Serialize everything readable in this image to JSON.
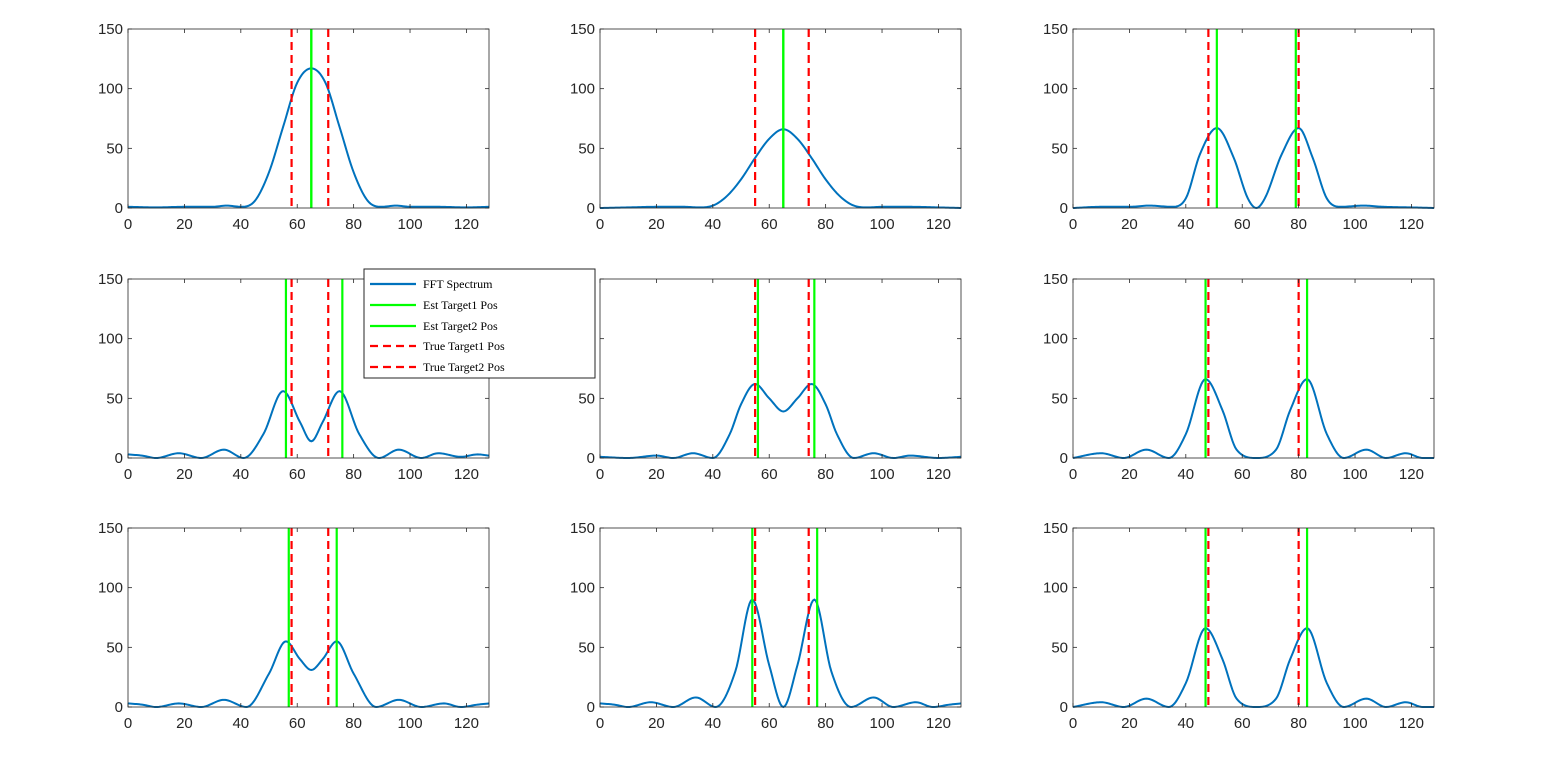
{
  "figure": {
    "legend": {
      "entries": [
        {
          "label": "FFT Spectrum",
          "color": "#0072BD",
          "style": "solid"
        },
        {
          "label": "Est Target1 Pos",
          "color": "#00FF00",
          "style": "solid"
        },
        {
          "label": "Est Target2 Pos",
          "color": "#00FF00",
          "style": "solid"
        },
        {
          "label": "True Target1 Pos",
          "color": "#FF0000",
          "style": "dashed"
        },
        {
          "label": "True Target2 Pos",
          "color": "#FF0000",
          "style": "dashed"
        }
      ]
    },
    "colors": {
      "spectrum": "#0072BD",
      "estimate": "#00FF00",
      "truth": "#FF0000",
      "axis": "#262626"
    }
  },
  "chart_data": [
    {
      "type": "line",
      "title": "",
      "xlabel": "",
      "ylabel": "",
      "xlim": [
        0,
        128
      ],
      "ylim": [
        0,
        150
      ],
      "xticks": [
        0,
        20,
        40,
        60,
        80,
        100,
        120
      ],
      "yticks": [
        0,
        50,
        100,
        150
      ],
      "spectrum": {
        "name": "FFT Spectrum",
        "x": [
          0,
          10,
          20,
          30,
          35,
          40,
          45,
          50,
          55,
          60,
          65,
          70,
          75,
          80,
          85,
          90,
          95,
          100,
          110,
          120,
          128
        ],
        "y": [
          1,
          0.5,
          1,
          1,
          2,
          1,
          6,
          30,
          68,
          105,
          117,
          105,
          68,
          30,
          6,
          1,
          2,
          1,
          1,
          0.5,
          1
        ]
      },
      "est_positions": [
        65,
        65
      ],
      "true_positions": [
        58,
        71
      ]
    },
    {
      "type": "line",
      "title": "",
      "xlabel": "",
      "ylabel": "",
      "xlim": [
        0,
        128
      ],
      "ylim": [
        0,
        150
      ],
      "xticks": [
        0,
        20,
        40,
        60,
        80,
        100,
        120
      ],
      "yticks": [
        0,
        50,
        100,
        150
      ],
      "spectrum": {
        "name": "FFT Spectrum",
        "x": [
          0,
          10,
          20,
          30,
          35,
          40,
          45,
          50,
          55,
          60,
          65,
          70,
          75,
          80,
          85,
          90,
          95,
          100,
          110,
          120,
          128
        ],
        "y": [
          0,
          0.5,
          1,
          1,
          0.5,
          2,
          10,
          24,
          42,
          58,
          66,
          58,
          42,
          24,
          10,
          2,
          0.5,
          1,
          1,
          0.5,
          0
        ]
      },
      "est_positions": [
        65,
        65
      ],
      "true_positions": [
        55,
        74
      ]
    },
    {
      "type": "line",
      "title": "",
      "xlabel": "",
      "ylabel": "",
      "xlim": [
        0,
        128
      ],
      "ylim": [
        0,
        150
      ],
      "xticks": [
        0,
        20,
        40,
        60,
        80,
        100,
        120
      ],
      "yticks": [
        0,
        50,
        100,
        150
      ],
      "spectrum": {
        "name": "FFT Spectrum",
        "x": [
          0,
          10,
          20,
          27,
          35,
          40,
          45,
          51,
          57,
          62,
          65,
          68,
          74,
          80,
          85,
          90,
          95,
          103,
          110,
          120,
          128
        ],
        "y": [
          0,
          1,
          1,
          2,
          1,
          8,
          45,
          67,
          42,
          8,
          0,
          8,
          45,
          67,
          42,
          8,
          1,
          2,
          1,
          0.5,
          0
        ]
      },
      "est_positions": [
        51,
        79
      ],
      "true_positions": [
        48,
        80
      ]
    },
    {
      "type": "line",
      "title": "",
      "xlabel": "",
      "ylabel": "",
      "xlim": [
        0,
        128
      ],
      "ylim": [
        0,
        150
      ],
      "xticks": [
        0,
        20,
        40,
        60,
        80,
        100,
        120
      ],
      "yticks": [
        0,
        50,
        100,
        150
      ],
      "spectrum": {
        "name": "FFT Spectrum",
        "x": [
          0,
          5,
          10,
          18,
          26,
          34,
          41,
          48,
          55,
          61,
          65,
          69,
          75,
          82,
          89,
          96,
          104,
          110,
          118,
          124,
          128
        ],
        "y": [
          3,
          2,
          0,
          4,
          0,
          7,
          0,
          20,
          56,
          30,
          14,
          30,
          56,
          20,
          0,
          7,
          0,
          4,
          1,
          3,
          2
        ]
      },
      "est_positions": [
        56,
        76
      ],
      "true_positions": [
        58,
        71
      ]
    },
    {
      "type": "line",
      "title": "",
      "xlabel": "",
      "ylabel": "",
      "xlim": [
        0,
        128
      ],
      "ylim": [
        0,
        150
      ],
      "xticks": [
        0,
        20,
        40,
        60,
        80,
        100,
        120
      ],
      "yticks": [
        0,
        50,
        100,
        150
      ],
      "spectrum": {
        "name": "FFT Spectrum",
        "x": [
          0,
          10,
          20,
          26,
          33,
          40,
          46,
          50,
          55,
          60,
          65,
          70,
          75,
          80,
          84,
          90,
          97,
          104,
          110,
          120,
          128
        ],
        "y": [
          1,
          0,
          2,
          0,
          4,
          0,
          20,
          45,
          62,
          50,
          39,
          50,
          62,
          45,
          20,
          0,
          4,
          0,
          2,
          0,
          1
        ]
      },
      "est_positions": [
        56,
        76
      ],
      "true_positions": [
        55,
        74
      ]
    },
    {
      "type": "line",
      "title": "",
      "xlabel": "",
      "ylabel": "",
      "xlim": [
        0,
        128
      ],
      "ylim": [
        0,
        150
      ],
      "xticks": [
        0,
        20,
        40,
        60,
        80,
        100,
        120
      ],
      "yticks": [
        0,
        50,
        100,
        150
      ],
      "spectrum": {
        "name": "FFT Spectrum",
        "x": [
          0,
          10,
          18,
          26,
          34,
          40,
          47,
          53,
          58,
          65,
          72,
          77,
          83,
          90,
          96,
          104,
          111,
          118,
          124,
          128
        ],
        "y": [
          0,
          4,
          0,
          7,
          0,
          20,
          66,
          40,
          7,
          0,
          7,
          40,
          66,
          20,
          0,
          7,
          0,
          4,
          0,
          0
        ]
      },
      "est_positions": [
        47,
        83
      ],
      "true_positions": [
        48,
        80
      ]
    },
    {
      "type": "line",
      "title": "",
      "xlabel": "",
      "ylabel": "",
      "xlim": [
        0,
        128
      ],
      "ylim": [
        0,
        150
      ],
      "xticks": [
        0,
        20,
        40,
        60,
        80,
        100,
        120
      ],
      "yticks": [
        0,
        50,
        100,
        150
      ],
      "spectrum": {
        "name": "FFT Spectrum",
        "x": [
          0,
          5,
          10,
          18,
          26,
          34,
          42,
          50,
          56,
          61,
          65,
          69,
          74,
          80,
          88,
          96,
          104,
          112,
          118,
          124,
          128
        ],
        "y": [
          3,
          2,
          0,
          3,
          0,
          6,
          0,
          28,
          55,
          40,
          31,
          40,
          55,
          28,
          0,
          6,
          0,
          3,
          0,
          2,
          3
        ]
      },
      "est_positions": [
        57,
        74
      ],
      "true_positions": [
        58,
        71
      ]
    },
    {
      "type": "line",
      "title": "",
      "xlabel": "",
      "ylabel": "",
      "xlim": [
        0,
        128
      ],
      "ylim": [
        0,
        150
      ],
      "xticks": [
        0,
        20,
        40,
        60,
        80,
        100,
        120
      ],
      "yticks": [
        0,
        50,
        100,
        150
      ],
      "spectrum": {
        "name": "FFT Spectrum",
        "x": [
          0,
          5,
          10,
          18,
          26,
          34,
          41,
          48,
          54,
          60,
          65,
          70,
          76,
          82,
          89,
          97,
          104,
          112,
          118,
          124,
          128
        ],
        "y": [
          3,
          2,
          0,
          4,
          0,
          8,
          0,
          30,
          90,
          35,
          0,
          35,
          90,
          30,
          0,
          8,
          0,
          4,
          0,
          2,
          3
        ]
      },
      "est_positions": [
        54,
        77
      ],
      "true_positions": [
        55,
        74
      ]
    },
    {
      "type": "line",
      "title": "",
      "xlabel": "",
      "ylabel": "",
      "xlim": [
        0,
        128
      ],
      "ylim": [
        0,
        150
      ],
      "xticks": [
        0,
        20,
        40,
        60,
        80,
        100,
        120
      ],
      "yticks": [
        0,
        50,
        100,
        150
      ],
      "spectrum": {
        "name": "FFT Spectrum",
        "x": [
          0,
          10,
          18,
          26,
          34,
          40,
          47,
          53,
          58,
          65,
          72,
          77,
          83,
          90,
          96,
          104,
          111,
          118,
          124,
          128
        ],
        "y": [
          0,
          4,
          0,
          7,
          0,
          20,
          66,
          40,
          7,
          0,
          7,
          40,
          66,
          20,
          0,
          7,
          0,
          4,
          0,
          0
        ]
      },
      "est_positions": [
        47,
        83
      ],
      "true_positions": [
        48,
        80
      ]
    }
  ]
}
